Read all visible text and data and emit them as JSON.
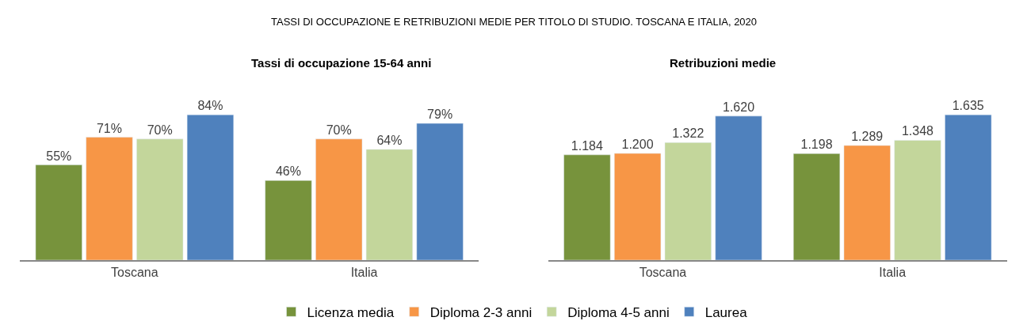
{
  "chart_data": [
    {
      "type": "bar",
      "title": "Tassi di occupazione 15-64 anni",
      "annotations": [
        "TASSI DI OCCUPAZIONE E RETRIBUZIONI MEDIE PER TITOLO DI STUDIO. TOSCANA E ITALIA, 2020"
      ],
      "categories": [
        "Toscana",
        "Italia"
      ],
      "legend": "bottom",
      "series": [
        {
          "name": "Licenza media",
          "color": "#77933c",
          "values": [
            55,
            46
          ],
          "value_labels": [
            "55%",
            "46%"
          ]
        },
        {
          "name": "Diploma 2-3 anni",
          "color": "#f79646",
          "values": [
            71,
            70
          ],
          "value_labels": [
            "71%",
            "70%"
          ]
        },
        {
          "name": "Diploma 4-5 anni",
          "color": "#c3d69b",
          "values": [
            70,
            64
          ],
          "value_labels": [
            "70%",
            "64%"
          ]
        },
        {
          "name": "Laurea",
          "color": "#4f81bd",
          "values": [
            84,
            79
          ],
          "value_labels": [
            "84%",
            "79%"
          ]
        }
      ]
    },
    {
      "type": "bar",
      "title": "Retribuzioni medie",
      "categories": [
        "Toscana",
        "Italia"
      ],
      "legend": "bottom",
      "series": [
        {
          "name": "Licenza media",
          "color": "#77933c",
          "values": [
            1184,
            1198
          ],
          "value_labels": [
            "1.184",
            "1.198"
          ]
        },
        {
          "name": "Diploma 2-3 anni",
          "color": "#f79646",
          "values": [
            1200,
            1289
          ],
          "value_labels": [
            "1.200",
            "1.289"
          ]
        },
        {
          "name": "Diploma 4-5 anni",
          "color": "#c3d69b",
          "values": [
            1322,
            1348
          ],
          "value_labels": [
            "1.322",
            "1.348"
          ]
        },
        {
          "name": "Laurea",
          "color": "#4f81bd",
          "values": [
            1620,
            1635
          ],
          "value_labels": [
            "1.620",
            "1.635"
          ]
        }
      ]
    }
  ]
}
